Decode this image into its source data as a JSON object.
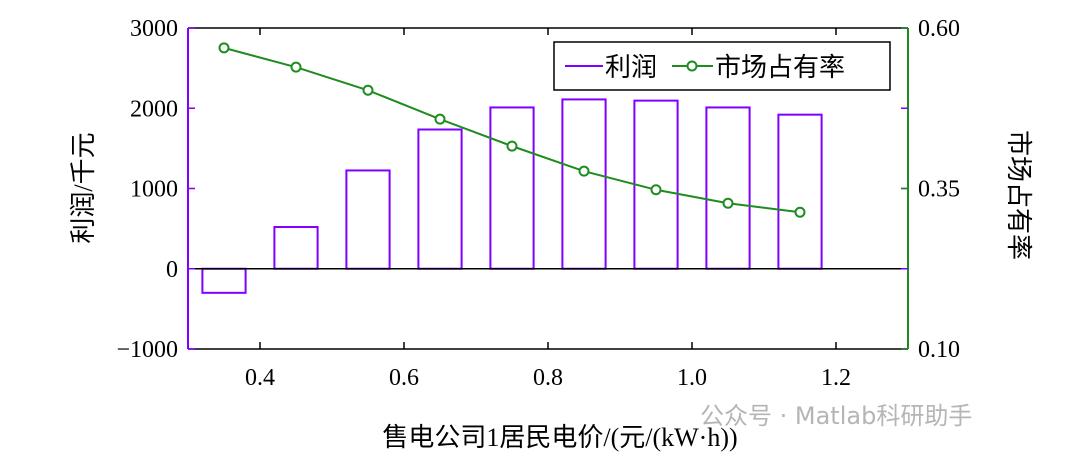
{
  "chart_data": {
    "type": "bar",
    "title": "",
    "xlabel": "售电公司1居民电价/(元/(kW·h))",
    "ylabel": "利润/千元",
    "y2label": "市场占有率",
    "xlim": [
      0.3,
      1.3
    ],
    "ylim": [
      -1000,
      3000
    ],
    "y2lim": [
      0.1,
      0.6
    ],
    "xticks": [
      "0.4",
      "0.6",
      "0.8",
      "1.0",
      "1.2"
    ],
    "xtick_values": [
      0.4,
      0.6,
      0.8,
      1.0,
      1.2
    ],
    "yticks": [
      "−1000",
      "0",
      "1000",
      "2000",
      "3000"
    ],
    "ytick_values": [
      -1000,
      0,
      1000,
      2000,
      3000
    ],
    "y2ticks": [
      "0.10",
      "0.35",
      "0.60"
    ],
    "y2tick_values": [
      0.1,
      0.35,
      0.6
    ],
    "grid": false,
    "legend_position": "top-right",
    "x": [
      0.35,
      0.45,
      0.55,
      0.65,
      0.75,
      0.85,
      0.95,
      1.05,
      1.15
    ],
    "series": [
      {
        "name": "利润",
        "type": "bar",
        "axis": "left",
        "color": "#7f00ff",
        "values": [
          -300,
          520,
          1225,
          1735,
          2010,
          2110,
          2095,
          2010,
          1920
        ]
      },
      {
        "name": "市场占有率",
        "type": "line",
        "axis": "right",
        "color": "#1e8c1e",
        "values": [
          0.569,
          0.539,
          0.503,
          0.458,
          0.416,
          0.377,
          0.348,
          0.327,
          0.313
        ]
      }
    ]
  },
  "watermark": "公众号 · Matlab科研助手"
}
